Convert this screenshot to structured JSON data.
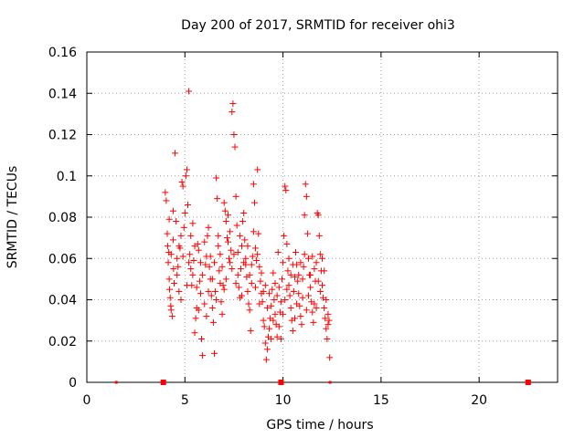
{
  "chart_data": {
    "type": "scatter",
    "title": "Day 200 of 2017, SRMTID for receiver ohi3",
    "xlabel": "GPS time / hours",
    "ylabel": "SRMTID / TECUs",
    "xlim": [
      0,
      24
    ],
    "ylim": [
      0,
      0.16
    ],
    "xticks": [
      0,
      5,
      10,
      15,
      20
    ],
    "yticks": [
      0,
      0.02,
      0.04,
      0.06,
      0.08,
      0.1,
      0.12,
      0.14,
      0.16
    ],
    "ytick_labels": [
      "0",
      "0.02",
      "0.04",
      "0.06",
      "0.08",
      "0.1",
      "0.12",
      "0.14",
      "0.16"
    ],
    "xtick_labels": [
      "0",
      "5",
      "10",
      "15",
      "20"
    ],
    "grid": true,
    "marker": "+",
    "color": "#ff0000",
    "series": [
      {
        "name": "SRMTID",
        "points": [
          [
            4.0,
            0.092
          ],
          [
            4.05,
            0.088
          ],
          [
            4.1,
            0.072
          ],
          [
            4.12,
            0.066
          ],
          [
            4.15,
            0.058
          ],
          [
            4.18,
            0.063
          ],
          [
            4.2,
            0.05
          ],
          [
            4.22,
            0.045
          ],
          [
            4.25,
            0.041
          ],
          [
            4.28,
            0.037
          ],
          [
            4.3,
            0.035
          ],
          [
            4.35,
            0.032
          ],
          [
            4.4,
            0.069
          ],
          [
            4.42,
            0.055
          ],
          [
            4.45,
            0.048
          ],
          [
            4.5,
            0.111
          ],
          [
            4.55,
            0.078
          ],
          [
            4.6,
            0.06
          ],
          [
            4.65,
            0.056
          ],
          [
            4.7,
            0.044
          ],
          [
            4.75,
            0.065
          ],
          [
            4.8,
            0.071
          ],
          [
            4.85,
            0.097
          ],
          [
            4.9,
            0.095
          ],
          [
            4.95,
            0.075
          ],
          [
            5.0,
            0.082
          ],
          [
            5.05,
            0.1
          ],
          [
            5.1,
            0.103
          ],
          [
            5.15,
            0.086
          ],
          [
            5.2,
            0.141
          ],
          [
            5.25,
            0.062
          ],
          [
            5.3,
            0.055
          ],
          [
            5.35,
            0.047
          ],
          [
            5.4,
            0.052
          ],
          [
            5.45,
            0.059
          ],
          [
            5.5,
            0.024
          ],
          [
            5.55,
            0.031
          ],
          [
            5.6,
            0.036
          ],
          [
            5.65,
            0.067
          ],
          [
            5.7,
            0.064
          ],
          [
            5.75,
            0.049
          ],
          [
            5.8,
            0.043
          ],
          [
            5.85,
            0.021
          ],
          [
            5.9,
            0.013
          ],
          [
            6.0,
            0.038
          ],
          [
            6.05,
            0.057
          ],
          [
            6.1,
            0.061
          ],
          [
            6.15,
            0.071
          ],
          [
            6.2,
            0.075
          ],
          [
            6.25,
            0.056
          ],
          [
            6.3,
            0.05
          ],
          [
            6.35,
            0.042
          ],
          [
            6.4,
            0.036
          ],
          [
            6.45,
            0.029
          ],
          [
            6.5,
            0.014
          ],
          [
            6.55,
            0.044
          ],
          [
            6.6,
            0.099
          ],
          [
            6.65,
            0.089
          ],
          [
            6.7,
            0.066
          ],
          [
            6.75,
            0.054
          ],
          [
            6.8,
            0.048
          ],
          [
            6.85,
            0.039
          ],
          [
            6.9,
            0.033
          ],
          [
            6.95,
            0.047
          ],
          [
            7.0,
            0.087
          ],
          [
            7.05,
            0.083
          ],
          [
            7.1,
            0.078
          ],
          [
            7.15,
            0.07
          ],
          [
            7.2,
            0.068
          ],
          [
            7.25,
            0.06
          ],
          [
            7.3,
            0.058
          ],
          [
            7.35,
            0.064
          ],
          [
            7.4,
            0.131
          ],
          [
            7.45,
            0.135
          ],
          [
            7.5,
            0.12
          ],
          [
            7.55,
            0.114
          ],
          [
            7.6,
            0.09
          ],
          [
            7.65,
            0.076
          ],
          [
            7.7,
            0.052
          ],
          [
            7.75,
            0.046
          ],
          [
            7.8,
            0.041
          ],
          [
            7.85,
            0.055
          ],
          [
            7.9,
            0.066
          ],
          [
            7.95,
            0.078
          ],
          [
            8.0,
            0.082
          ],
          [
            8.05,
            0.069
          ],
          [
            8.1,
            0.057
          ],
          [
            8.15,
            0.051
          ],
          [
            8.2,
            0.044
          ],
          [
            8.25,
            0.038
          ],
          [
            8.3,
            0.035
          ],
          [
            8.35,
            0.025
          ],
          [
            8.4,
            0.048
          ],
          [
            8.45,
            0.061
          ],
          [
            8.5,
            0.096
          ],
          [
            8.55,
            0.087
          ],
          [
            8.6,
            0.065
          ],
          [
            8.65,
            0.059
          ],
          [
            8.7,
            0.103
          ],
          [
            8.75,
            0.072
          ],
          [
            8.8,
            0.056
          ],
          [
            8.85,
            0.049
          ],
          [
            8.9,
            0.043
          ],
          [
            8.95,
            0.039
          ],
          [
            9.0,
            0.03
          ],
          [
            9.05,
            0.027
          ],
          [
            9.1,
            0.019
          ],
          [
            9.15,
            0.011
          ],
          [
            9.2,
            0.016
          ],
          [
            9.25,
            0.022
          ],
          [
            9.3,
            0.026
          ],
          [
            9.35,
            0.031
          ],
          [
            9.4,
            0.037
          ],
          [
            9.45,
            0.045
          ],
          [
            9.5,
            0.053
          ],
          [
            9.55,
            0.04
          ],
          [
            9.6,
            0.033
          ],
          [
            9.65,
            0.028
          ],
          [
            9.7,
            0.022
          ],
          [
            9.75,
            0.063
          ],
          [
            9.8,
            0.046
          ],
          [
            9.85,
            0.034
          ],
          [
            9.9,
            0.039
          ],
          [
            9.95,
            0.05
          ],
          [
            10.0,
            0.058
          ],
          [
            10.05,
            0.071
          ],
          [
            10.1,
            0.095
          ],
          [
            10.15,
            0.093
          ],
          [
            10.2,
            0.067
          ],
          [
            10.25,
            0.054
          ],
          [
            10.3,
            0.047
          ],
          [
            10.35,
            0.042
          ],
          [
            10.4,
            0.036
          ],
          [
            10.45,
            0.03
          ],
          [
            10.5,
            0.025
          ],
          [
            10.55,
            0.044
          ],
          [
            10.6,
            0.051
          ],
          [
            10.65,
            0.063
          ],
          [
            10.7,
            0.057
          ],
          [
            10.75,
            0.049
          ],
          [
            10.8,
            0.043
          ],
          [
            10.85,
            0.037
          ],
          [
            10.9,
            0.032
          ],
          [
            10.95,
            0.028
          ],
          [
            11.0,
            0.041
          ],
          [
            11.05,
            0.056
          ],
          [
            11.1,
            0.081
          ],
          [
            11.15,
            0.096
          ],
          [
            11.2,
            0.09
          ],
          [
            11.25,
            0.072
          ],
          [
            11.3,
            0.06
          ],
          [
            11.35,
            0.052
          ],
          [
            11.4,
            0.046
          ],
          [
            11.45,
            0.039
          ],
          [
            11.5,
            0.034
          ],
          [
            11.55,
            0.029
          ],
          [
            11.6,
            0.038
          ],
          [
            11.65,
            0.049
          ],
          [
            11.7,
            0.058
          ],
          [
            11.75,
            0.082
          ],
          [
            11.8,
            0.081
          ],
          [
            11.85,
            0.071
          ],
          [
            11.9,
            0.062
          ],
          [
            11.95,
            0.054
          ],
          [
            12.0,
            0.047
          ],
          [
            12.05,
            0.041
          ],
          [
            12.1,
            0.036
          ],
          [
            12.15,
            0.031
          ],
          [
            12.2,
            0.026
          ],
          [
            12.25,
            0.021
          ],
          [
            12.3,
            0.033
          ],
          [
            12.35,
            0.03
          ],
          [
            12.38,
            0.012
          ],
          [
            4.3,
            0.062
          ],
          [
            4.6,
            0.052
          ],
          [
            4.9,
            0.061
          ],
          [
            5.3,
            0.071
          ],
          [
            5.6,
            0.046
          ],
          [
            5.9,
            0.052
          ],
          [
            6.2,
            0.044
          ],
          [
            6.5,
            0.058
          ],
          [
            6.8,
            0.062
          ],
          [
            7.1,
            0.05
          ],
          [
            7.4,
            0.055
          ],
          [
            7.7,
            0.063
          ],
          [
            8.0,
            0.058
          ],
          [
            8.3,
            0.052
          ],
          [
            8.6,
            0.046
          ],
          [
            8.9,
            0.053
          ],
          [
            9.2,
            0.036
          ],
          [
            9.5,
            0.03
          ],
          [
            9.8,
            0.027
          ],
          [
            10.1,
            0.04
          ],
          [
            10.4,
            0.052
          ],
          [
            10.7,
            0.038
          ],
          [
            11.0,
            0.05
          ],
          [
            11.3,
            0.042
          ],
          [
            11.6,
            0.055
          ],
          [
            11.9,
            0.044
          ],
          [
            12.2,
            0.04
          ],
          [
            4.4,
            0.083
          ],
          [
            4.8,
            0.04
          ],
          [
            5.2,
            0.058
          ],
          [
            5.5,
            0.066
          ],
          [
            5.8,
            0.058
          ],
          [
            6.1,
            0.032
          ],
          [
            6.4,
            0.05
          ],
          [
            6.7,
            0.071
          ],
          [
            7.0,
            0.045
          ],
          [
            7.3,
            0.073
          ],
          [
            7.6,
            0.048
          ],
          [
            7.9,
            0.042
          ],
          [
            8.2,
            0.066
          ],
          [
            8.5,
            0.073
          ],
          [
            8.8,
            0.038
          ],
          [
            9.1,
            0.047
          ],
          [
            9.4,
            0.021
          ],
          [
            9.7,
            0.042
          ],
          [
            10.0,
            0.033
          ],
          [
            10.3,
            0.06
          ],
          [
            10.6,
            0.031
          ],
          [
            10.9,
            0.058
          ],
          [
            11.2,
            0.035
          ],
          [
            11.5,
            0.061
          ],
          [
            11.8,
            0.049
          ],
          [
            12.1,
            0.054
          ],
          [
            4.2,
            0.079
          ],
          [
            4.7,
            0.066
          ],
          [
            5.1,
            0.047
          ],
          [
            5.4,
            0.077
          ],
          [
            5.7,
            0.035
          ],
          [
            6.0,
            0.068
          ],
          [
            6.3,
            0.061
          ],
          [
            6.6,
            0.04
          ],
          [
            6.9,
            0.056
          ],
          [
            7.2,
            0.081
          ],
          [
            7.5,
            0.062
          ],
          [
            7.8,
            0.071
          ],
          [
            8.1,
            0.06
          ],
          [
            8.4,
            0.057
          ],
          [
            8.7,
            0.062
          ],
          [
            9.0,
            0.044
          ],
          [
            9.3,
            0.043
          ],
          [
            9.6,
            0.048
          ],
          [
            9.9,
            0.021
          ],
          [
            10.2,
            0.045
          ],
          [
            10.5,
            0.057
          ],
          [
            10.8,
            0.052
          ],
          [
            11.1,
            0.062
          ],
          [
            11.4,
            0.052
          ],
          [
            11.7,
            0.036
          ],
          [
            12.0,
            0.06
          ],
          [
            12.3,
            0.028
          ]
        ]
      }
    ],
    "axis_markers": [
      {
        "x": 1.5,
        "size": "small"
      },
      {
        "x": 3.9,
        "size": "large"
      },
      {
        "x": 9.9,
        "size": "large"
      },
      {
        "x": 12.4,
        "size": "small"
      },
      {
        "x": 22.5,
        "size": "large"
      }
    ]
  }
}
